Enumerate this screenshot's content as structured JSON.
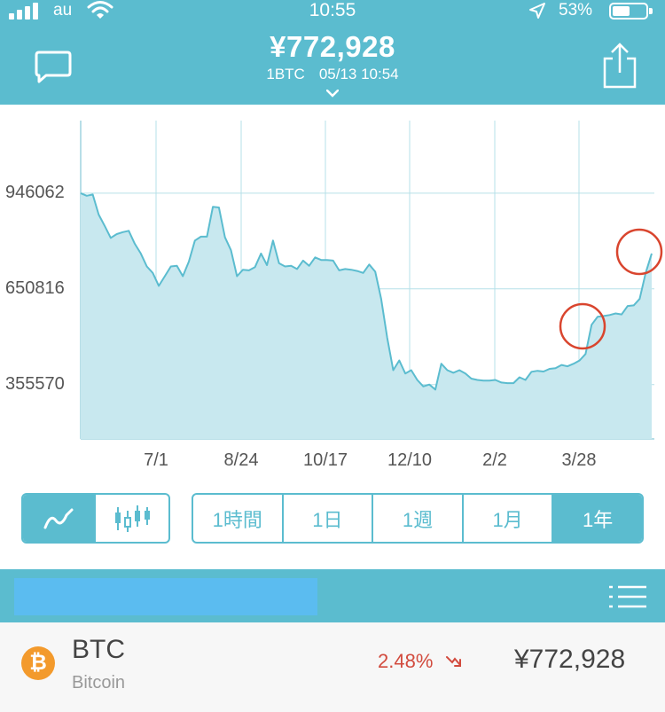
{
  "status_bar": {
    "carrier": "au",
    "time": "10:55",
    "battery_percent": "53%"
  },
  "header": {
    "price": "¥772,928",
    "unit": "1BTC",
    "timestamp": "05/13 10:54"
  },
  "chart_data": {
    "type": "area",
    "title": "",
    "xlabel": "",
    "ylabel": "",
    "y_ticks": [
      "946062",
      "650816",
      "355570"
    ],
    "x_ticks": [
      "7/1",
      "8/24",
      "10/17",
      "12/10",
      "2/2",
      "3/28"
    ],
    "ylim": [
      188000,
      1170000
    ],
    "grid": true,
    "series": [
      {
        "values": [
          946062,
          938000,
          942000,
          880000,
          845000,
          808000,
          820000,
          826000,
          830000,
          790000,
          760000,
          720000,
          700000,
          660000,
          690000,
          720000,
          722000,
          690000,
          735000,
          800000,
          812000,
          812000,
          904000,
          902000,
          810000,
          770000,
          690000,
          710000,
          708000,
          718000,
          760000,
          724000,
          800000,
          730000,
          720000,
          722000,
          712000,
          738000,
          722000,
          748000,
          740000,
          740000,
          738000,
          708000,
          712000,
          710000,
          706000,
          700000,
          726000,
          704000,
          620000,
          500000,
          400000,
          430000,
          390000,
          400000,
          370000,
          350000,
          355570,
          340000,
          420000,
          400000,
          392000,
          400000,
          390000,
          374000,
          370000,
          368000,
          368000,
          370000,
          362000,
          360000,
          360000,
          378000,
          370000,
          395000,
          398000,
          396000,
          404000,
          406000,
          416000,
          412000,
          420000,
          430000,
          450000,
          540000,
          565000,
          567000,
          570000,
          575000,
          572000,
          598000,
          600000,
          620000,
          700000,
          760000
        ]
      }
    ]
  },
  "chart_type_toggle": {
    "line_icon": "line-chart-icon",
    "candle_icon": "candlestick-chart-icon",
    "selected": "line"
  },
  "range_options": [
    "1時間",
    "1日",
    "1週",
    "1月",
    "1年"
  ],
  "range_selected": "1年",
  "colors": {
    "accent": "#5bbccf",
    "search_box": "#5bbcf0",
    "negative": "#d24b3e",
    "btc_orange": "#f39a2c",
    "highlight_circle": "#d9452e"
  },
  "coin": {
    "icon_letter": "₿",
    "symbol": "BTC",
    "name": "Bitcoin",
    "change": "2.48%",
    "change_direction": "down",
    "price": "¥772,928"
  }
}
